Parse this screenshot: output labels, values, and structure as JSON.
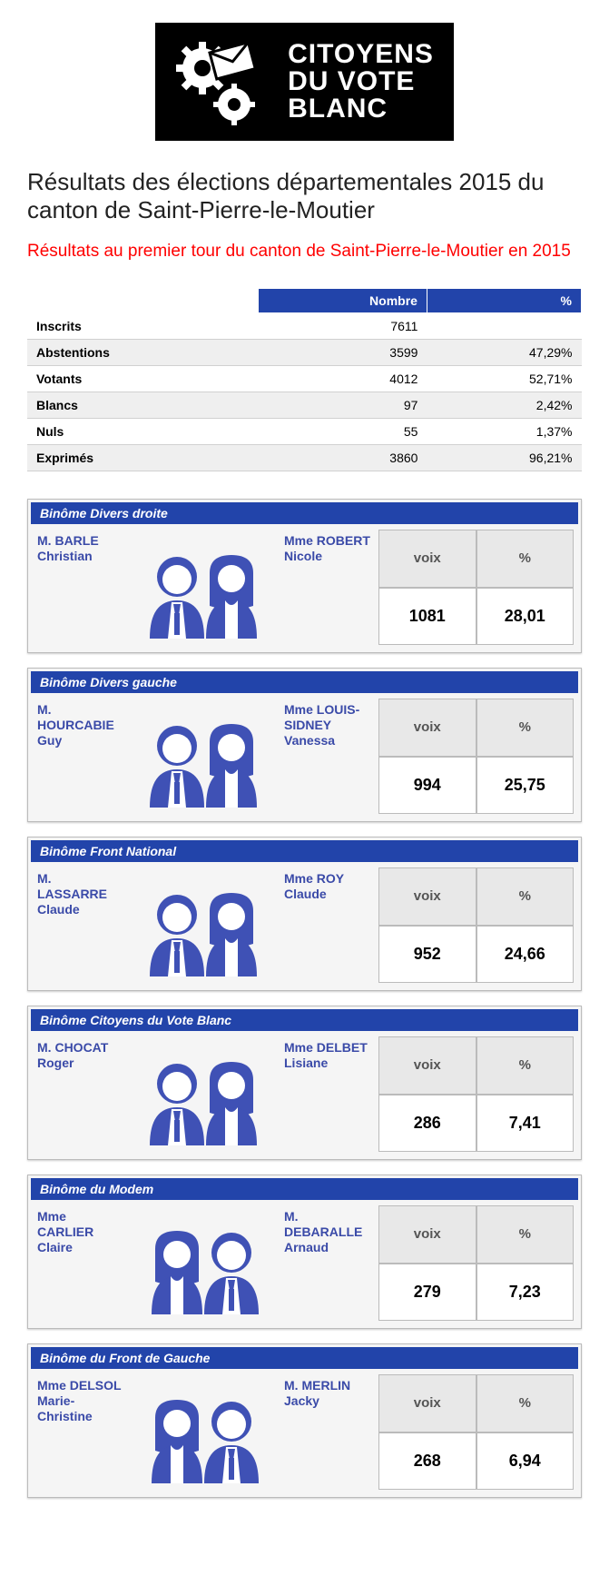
{
  "logo": {
    "line1": "CITOYENS",
    "line2": "DU VOTE",
    "line3": "BLANC"
  },
  "page_title": "Résultats des élections départementales 2015 du canton de Saint-Pierre-le-Moutier",
  "subtitle": "Résultats au premier tour du canton de Saint-Pierre-le-Moutier en 2015",
  "colors": {
    "brand": "#2244aa",
    "accent_red": "#ff0000",
    "avatar": "#3f51b5"
  },
  "stats": {
    "headers": {
      "number": "Nombre",
      "percent": "%"
    },
    "rows": [
      {
        "label": "Inscrits",
        "number": "7611",
        "percent": ""
      },
      {
        "label": "Abstentions",
        "number": "3599",
        "percent": "47,29%"
      },
      {
        "label": "Votants",
        "number": "4012",
        "percent": "52,71%"
      },
      {
        "label": "Blancs",
        "number": "97",
        "percent": "2,42%"
      },
      {
        "label": "Nuls",
        "number": "55",
        "percent": "1,37%"
      },
      {
        "label": "Exprimés",
        "number": "3860",
        "percent": "96,21%"
      }
    ]
  },
  "result_headers": {
    "voix": "voix",
    "percent": "%"
  },
  "binomes": [
    {
      "title": "Binôme Divers droite",
      "left": {
        "prefix": "M. ",
        "surname": "BARLE",
        "firstname": "Christian"
      },
      "right": {
        "prefix": "Mme ",
        "surname": "ROBERT",
        "firstname": "Nicole"
      },
      "avatars": "mf",
      "voix": "1081",
      "percent": "28,01"
    },
    {
      "title": "Binôme Divers gauche",
      "left": {
        "prefix": "M. ",
        "surname": "HOURCABIE",
        "firstname": "Guy"
      },
      "right": {
        "prefix": "Mme ",
        "surname": "LOUIS-SIDNEY",
        "firstname": "Vanessa"
      },
      "avatars": "mf",
      "voix": "994",
      "percent": "25,75"
    },
    {
      "title": "Binôme Front National",
      "left": {
        "prefix": "M. ",
        "surname": "LASSARRE",
        "firstname": "Claude"
      },
      "right": {
        "prefix": "Mme ",
        "surname": "ROY",
        "firstname": "Claude"
      },
      "avatars": "mf",
      "voix": "952",
      "percent": "24,66"
    },
    {
      "title": "Binôme Citoyens du Vote Blanc",
      "left": {
        "prefix": "M. ",
        "surname": "CHOCAT",
        "firstname": "Roger"
      },
      "right": {
        "prefix": "Mme ",
        "surname": "DELBET",
        "firstname": "Lisiane"
      },
      "avatars": "mf",
      "voix": "286",
      "percent": "7,41"
    },
    {
      "title": "Binôme du Modem",
      "left": {
        "prefix": "Mme ",
        "surname": "CARLIER",
        "firstname": "Claire"
      },
      "right": {
        "prefix": "M. ",
        "surname": "DEBARALLE",
        "firstname": "Arnaud"
      },
      "avatars": "fm",
      "voix": "279",
      "percent": "7,23"
    },
    {
      "title": "Binôme du Front de Gauche",
      "left": {
        "prefix": "Mme ",
        "surname": "DELSOL",
        "firstname": "Marie-Christine"
      },
      "right": {
        "prefix": "M. ",
        "surname": "MERLIN",
        "firstname": "Jacky"
      },
      "avatars": "fm",
      "voix": "268",
      "percent": "6,94"
    }
  ]
}
